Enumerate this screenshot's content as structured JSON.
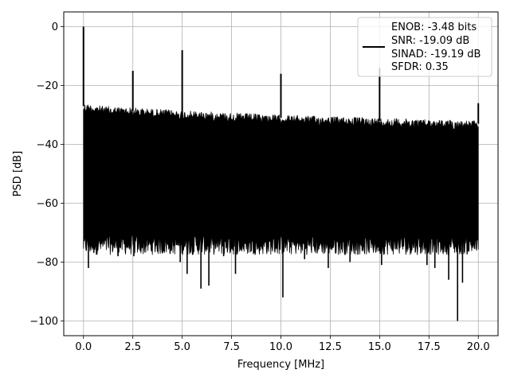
{
  "chart_data": {
    "type": "line",
    "title": "",
    "xlabel": "Frequency [MHz]",
    "ylabel": "PSD [dB]",
    "xlim": [
      -1.0,
      21.0
    ],
    "ylim": [
      -105,
      5
    ],
    "xticks": [
      0.0,
      2.5,
      5.0,
      7.5,
      10.0,
      12.5,
      15.0,
      17.5,
      20.0
    ],
    "xtick_labels": [
      "0.0",
      "2.5",
      "5.0",
      "7.5",
      "10.0",
      "12.5",
      "15.0",
      "17.5",
      "20.0"
    ],
    "yticks": [
      0,
      -20,
      -40,
      -60,
      -80,
      -100
    ],
    "ytick_labels": [
      "0",
      "−20",
      "−40",
      "−60",
      "−80",
      "−100"
    ],
    "grid": true,
    "legend_position": "top-right",
    "legend_lines": [
      "ENOB: -3.48 bits",
      "SNR: -19.09 dB",
      "SINAD: -19.19 dB",
      "SFDR: 0.35"
    ],
    "series": [
      {
        "color": "#000000",
        "noise_floor": {
          "x_range": [
            0.0,
            20.0
          ],
          "upper_envelope": {
            "x": [
              0,
              1,
              2.5,
              5,
              10,
              15,
              17.5,
              20
            ],
            "y": [
              -26,
              -27,
              -27.5,
              -28.5,
              -30,
              -31,
              -31.5,
              -32
            ]
          },
          "lower_envelope": {
            "x": [
              0,
              5,
              10,
              15,
              20
            ],
            "y": [
              -74,
              -74,
              -74,
              -74,
              -74
            ]
          },
          "deep_dips": [
            {
              "x": 0.25,
              "y": -82
            },
            {
              "x": 1.75,
              "y": -78
            },
            {
              "x": 2.55,
              "y": -78
            },
            {
              "x": 4.9,
              "y": -80
            },
            {
              "x": 5.25,
              "y": -84
            },
            {
              "x": 5.95,
              "y": -89
            },
            {
              "x": 6.35,
              "y": -88
            },
            {
              "x": 7.1,
              "y": -78
            },
            {
              "x": 7.7,
              "y": -84
            },
            {
              "x": 10.1,
              "y": -92
            },
            {
              "x": 11.2,
              "y": -79
            },
            {
              "x": 12.4,
              "y": -82
            },
            {
              "x": 13.5,
              "y": -80
            },
            {
              "x": 15.1,
              "y": -81
            },
            {
              "x": 17.4,
              "y": -81
            },
            {
              "x": 17.8,
              "y": -82
            },
            {
              "x": 18.5,
              "y": -86
            },
            {
              "x": 18.95,
              "y": -100
            },
            {
              "x": 19.2,
              "y": -87
            }
          ]
        },
        "spurs": [
          {
            "x": 0.0,
            "y": 0
          },
          {
            "x": 2.5,
            "y": -15
          },
          {
            "x": 5.0,
            "y": -8
          },
          {
            "x": 10.0,
            "y": -16
          },
          {
            "x": 15.0,
            "y": -14
          },
          {
            "x": 20.0,
            "y": -26
          }
        ]
      }
    ]
  }
}
